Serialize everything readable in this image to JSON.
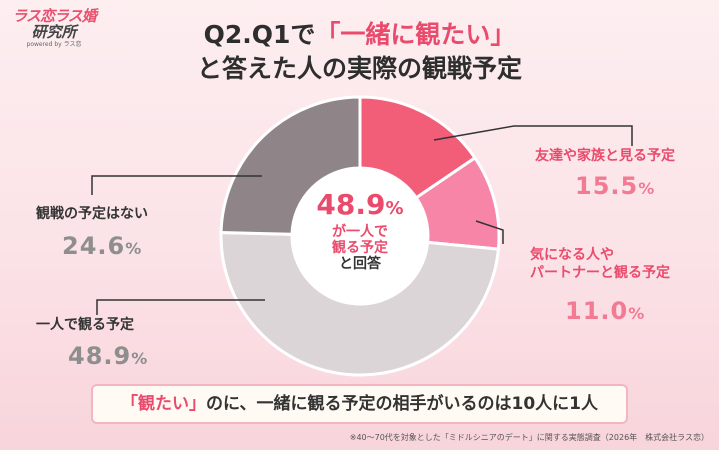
{
  "logo": {
    "line1": "ラス恋ラス婚",
    "line2": "研究所",
    "line3": "powered by ラス恋"
  },
  "title": {
    "line1_prefix": "Q2.Q1で",
    "line1_accent": "「一緒に観たい」",
    "line2": "と答えた人の実際の観戦予定"
  },
  "center": {
    "value": "48.9",
    "unit": "%",
    "line1": "が一人で",
    "line2": "観る予定",
    "line3": "と回答"
  },
  "banner": {
    "accent": "「観たい」",
    "text": "のに、一緒に観る予定の相手がいるのは10人に1人"
  },
  "footnote": "※40～70代を対象とした「ミドルシニアのデート」に関する実態調査（2026年　株式会社ラス恋）",
  "colors": {
    "accent": "#ea4b6c",
    "slice_friends": "#f25d78",
    "slice_partner": "#f785a8",
    "slice_alone": "#dcd5d7",
    "slice_none": "#8f8588"
  },
  "chart_data": {
    "type": "pie",
    "variant": "donut",
    "unit": "%",
    "slices": [
      {
        "label": "友達や家族と見る予定",
        "value": 15.5,
        "label_lines": [
          "友達や家族と見る予定"
        ],
        "value_text": "15.5",
        "color": "#f25d78",
        "text_style": "pink"
      },
      {
        "label": "気になる人やパートナーと観る予定",
        "value": 11.0,
        "label_lines": [
          "気になる人や",
          "パートナーと観る予定"
        ],
        "value_text": "11.0",
        "color": "#f785a8",
        "text_style": "pink"
      },
      {
        "label": "一人で観る予定",
        "value": 48.9,
        "label_lines": [
          "一人で観る予定"
        ],
        "value_text": "48.9",
        "color": "#dcd5d7",
        "text_style": "grey"
      },
      {
        "label": "観戦の予定はない",
        "value": 24.6,
        "label_lines": [
          "観戦の予定はない"
        ],
        "value_text": "24.6",
        "color": "#8f8588",
        "text_style": "grey"
      }
    ]
  }
}
